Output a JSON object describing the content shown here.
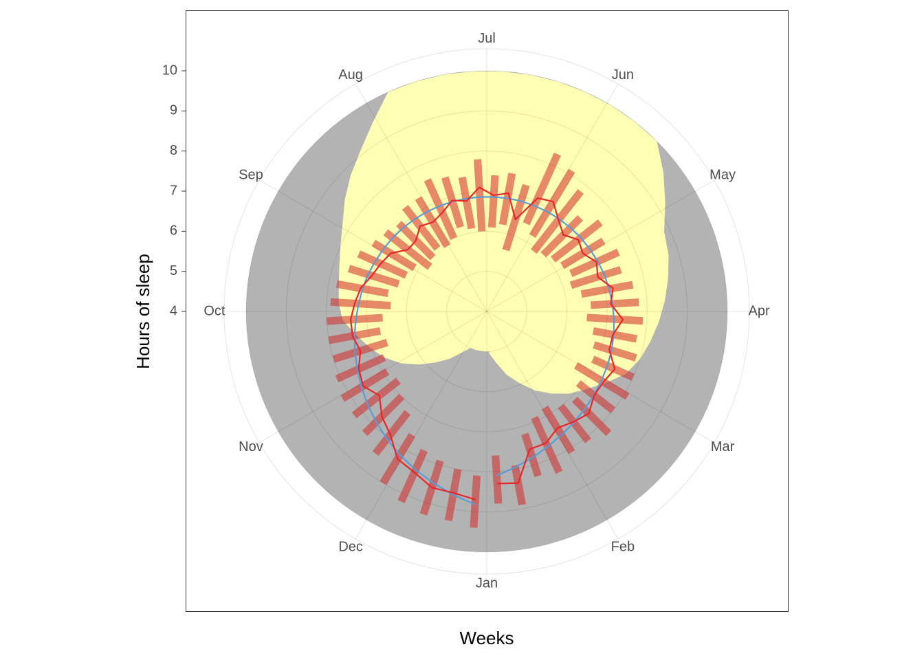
{
  "chart_data": {
    "type": "polar",
    "x_label": "Weeks",
    "y_label": "Hours of sleep",
    "x": [
      1,
      2,
      3,
      4,
      5,
      6,
      7,
      8,
      9,
      10,
      11,
      12,
      13,
      14,
      15,
      16,
      17,
      18,
      19,
      20,
      21,
      22,
      23,
      24,
      25,
      26,
      27,
      28,
      29,
      30,
      31,
      32,
      33,
      34,
      35,
      36,
      37,
      38,
      39,
      40,
      41,
      42,
      43,
      44,
      45,
      46,
      47,
      48,
      49,
      50,
      51,
      52
    ],
    "xlim": [
      0.5,
      52.5
    ],
    "xticks": [
      {
        "value": 0.5,
        "label": "Jan"
      },
      {
        "value": 4.83,
        "label": "Feb"
      },
      {
        "value": 9.17,
        "label": "Mar"
      },
      {
        "value": 13.5,
        "label": "Apr"
      },
      {
        "value": 17.83,
        "label": "May"
      },
      {
        "value": 22.17,
        "label": "Jun"
      },
      {
        "value": 26.5,
        "label": "Jul"
      },
      {
        "value": 30.83,
        "label": "Aug"
      },
      {
        "value": 35.17,
        "label": "Sep"
      },
      {
        "value": 39.5,
        "label": "Oct"
      },
      {
        "value": 43.83,
        "label": "Nov"
      },
      {
        "value": 48.17,
        "label": "Dec"
      }
    ],
    "ylim": [
      4,
      10.55
    ],
    "yticks": [
      4,
      5,
      6,
      7,
      8,
      9,
      10
    ],
    "night_band": {
      "low": 5,
      "high": 10,
      "color": "#b3b3b3"
    },
    "daylight": {
      "color": "#ffffb3",
      "values": [
        5.05,
        5.3,
        5.65,
        5.95,
        6.3,
        6.6,
        6.9,
        7.15,
        7.45,
        7.8,
        8.0,
        8.15,
        8.3,
        8.45,
        8.6,
        8.75,
        8.85,
        9.2,
        9.6,
        10,
        10,
        10,
        10,
        10,
        10,
        10,
        10,
        10,
        10,
        10,
        9.5,
        9.1,
        8.8,
        8.5,
        8.2,
        8.0,
        7.85,
        7.75,
        7.7,
        7.6,
        7.3,
        7.05,
        6.8,
        6.5,
        6.15,
        5.8,
        5.5,
        5.2,
        5,
        5,
        5,
        5
      ]
    },
    "ranges": {
      "color": "#d02828",
      "low": [
        7.6,
        7.9,
        7.2,
        6.9,
        6.8,
        7.0,
        7.1,
        6.9,
        6.6,
        6.9,
        6.8,
        6.7,
        6.5,
        6.6,
        6.4,
        6.2,
        6.3,
        6.2,
        6.1,
        6.0,
        5.9,
        6.2,
        6.4,
        5.6,
        6.2,
        6.1,
        6.0,
        6.1,
        6.2,
        6.0,
        5.9,
        6.0,
        5.9,
        5.8,
        6.1,
        6.2,
        6.3,
        6.5,
        6.4,
        6.6,
        6.7,
        6.6,
        6.8,
        6.9,
        6.8,
        7.0,
        7.2,
        7.6,
        7.8,
        7.9,
        8.0,
        8.1
      ],
      "high": [
        8.8,
        8.9,
        8.3,
        8.4,
        8.1,
        8.1,
        8.3,
        8.0,
        8.1,
        8.0,
        7.9,
        7.8,
        7.9,
        7.8,
        7.7,
        7.5,
        7.6,
        7.4,
        7.6,
        7.3,
        7.8,
        8.1,
        8.3,
        7.3,
        7.5,
        7.4,
        7.8,
        7.4,
        7.5,
        7.6,
        7.3,
        7.3,
        7.1,
        7.2,
        7.3,
        7.5,
        7.6,
        7.8,
        7.9,
        8.0,
        8.0,
        8.0,
        8.1,
        8.2,
        8.2,
        8.3,
        8.5,
        9.0,
        9.2,
        9.3,
        9.3,
        9.4
      ]
    },
    "series": [
      {
        "color": "#5b9bd5",
        "values": [
          8.1,
          7.95,
          7.82,
          7.7,
          7.6,
          7.52,
          7.45,
          7.39,
          7.34,
          7.3,
          7.26,
          7.22,
          7.18,
          7.14,
          7.1,
          7.07,
          7.04,
          7.0,
          6.98,
          6.95,
          6.93,
          6.91,
          6.89,
          6.88,
          6.87,
          6.86,
          6.86,
          6.86,
          6.87,
          6.88,
          6.9,
          6.92,
          6.95,
          6.98,
          7.01,
          7.05,
          7.1,
          7.15,
          7.2,
          7.27,
          7.35,
          7.44,
          7.54,
          7.65,
          7.77,
          7.9,
          8.04,
          8.18,
          8.33,
          8.48,
          8.65,
          8.82
        ]
      },
      {
        "color": "#e8262a",
        "values": [
          8.3,
          8.35,
          7.6,
          7.6,
          7.4,
          7.5,
          7.6,
          7.4,
          7.4,
          7.5,
          7.2,
          7.2,
          7.4,
          7.1,
          7.2,
          6.9,
          7.0,
          6.8,
          6.9,
          6.7,
          6.9,
          7.2,
          7.1,
          6.4,
          7.0,
          6.9,
          7.1,
          6.8,
          6.9,
          6.7,
          6.6,
          6.7,
          6.5,
          6.5,
          6.8,
          6.9,
          7.0,
          7.2,
          7.3,
          7.4,
          7.4,
          7.3,
          7.5,
          7.6,
          7.4,
          7.7,
          7.9,
          8.3,
          8.4,
          8.6,
          8.6,
          8.7
        ]
      }
    ]
  }
}
